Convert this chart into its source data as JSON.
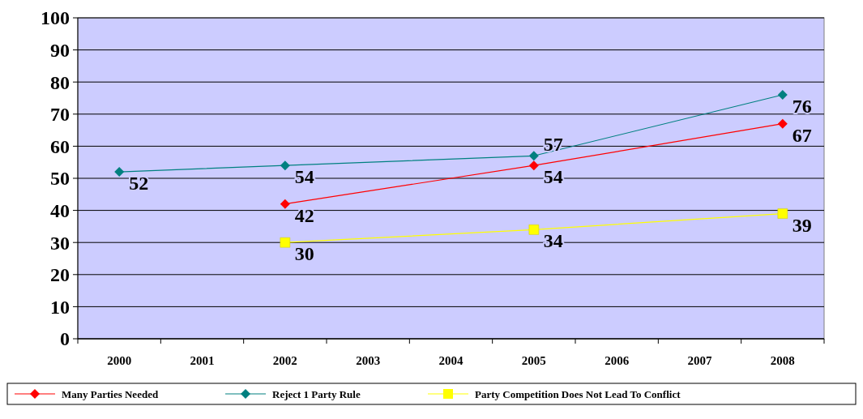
{
  "chart_data": {
    "type": "line",
    "categories": [
      "2000",
      "2001",
      "2002",
      "2003",
      "2004",
      "2005",
      "2006",
      "2007",
      "2008"
    ],
    "series": [
      {
        "name": "Many Parties Needed",
        "color": "#ff0000",
        "marker": "diamond",
        "values": [
          null,
          null,
          42,
          null,
          null,
          54,
          null,
          null,
          67
        ]
      },
      {
        "name": "Reject 1 Party Rule",
        "color": "#008080",
        "marker": "diamond",
        "values": [
          52,
          null,
          54,
          null,
          null,
          57,
          null,
          null,
          76
        ]
      },
      {
        "name": "Party Competition Does Not Lead To Conflict",
        "color": "#ffff00",
        "marker": "square",
        "values": [
          null,
          null,
          30,
          null,
          null,
          34,
          null,
          null,
          39
        ]
      }
    ],
    "ylim": [
      0,
      100
    ],
    "yticks": [
      0,
      10,
      20,
      30,
      40,
      50,
      60,
      70,
      80,
      90,
      100
    ],
    "grid": "y",
    "legend": "bottom",
    "data_labels": true
  }
}
